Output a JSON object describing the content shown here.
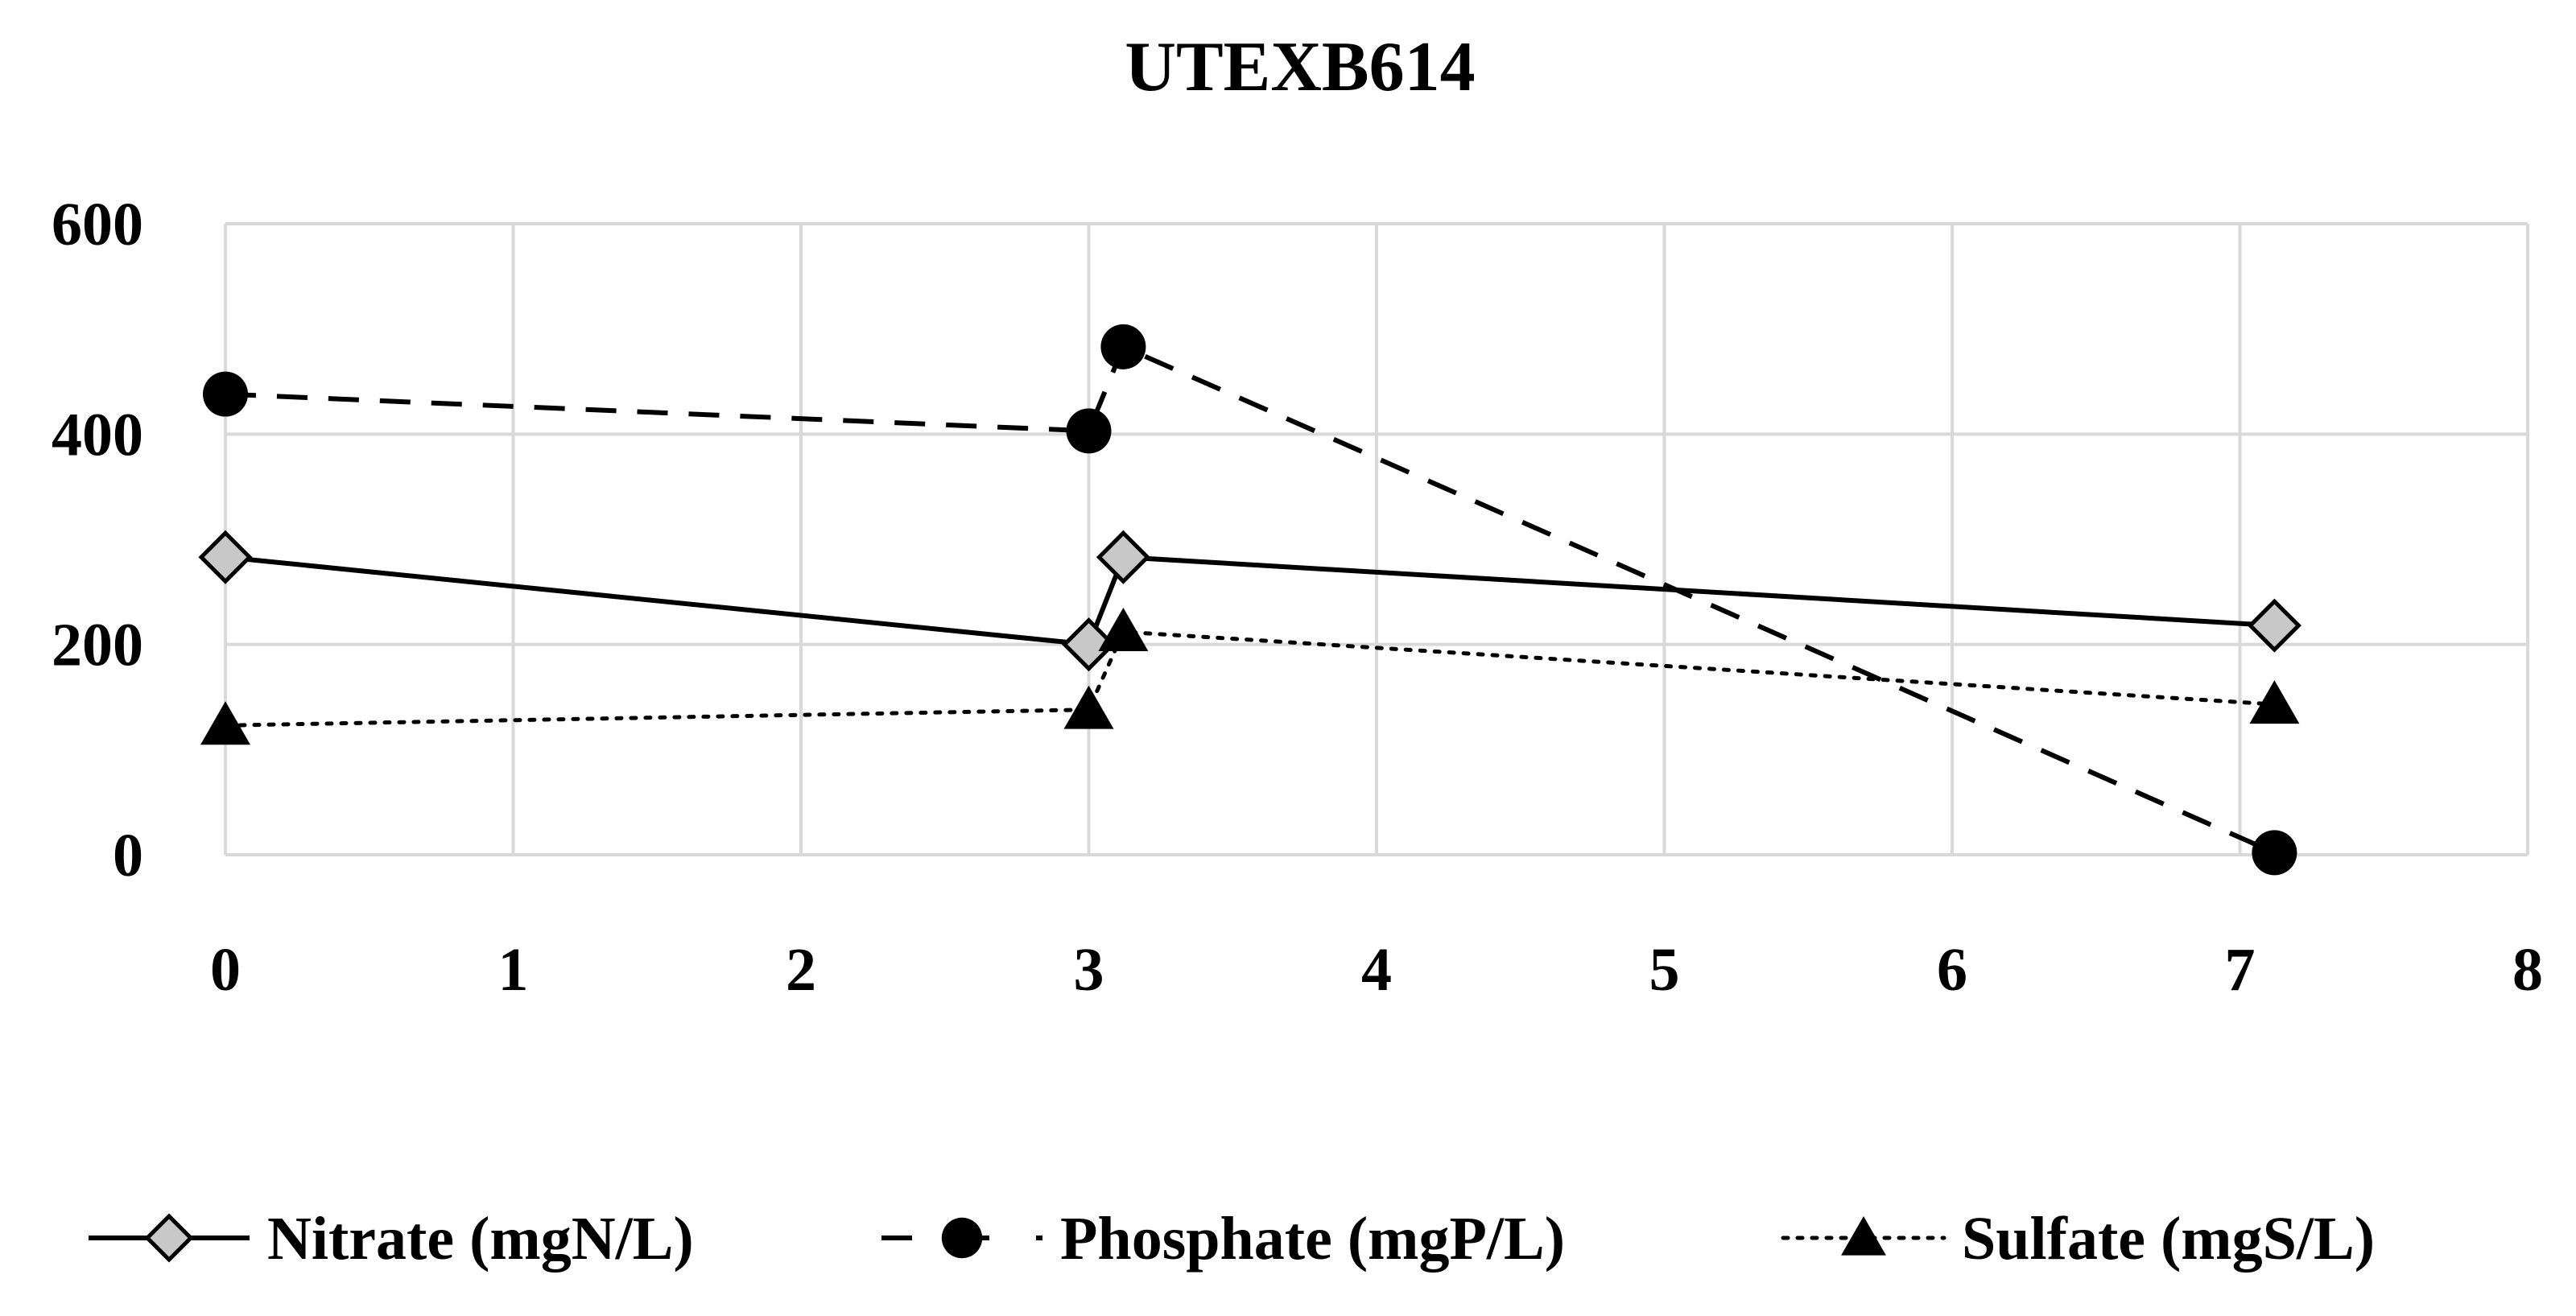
{
  "chart_data": {
    "type": "line",
    "title": "UTEXB614",
    "xlabel": "",
    "ylabel": "",
    "xlim": [
      0,
      8
    ],
    "ylim": [
      0,
      600
    ],
    "x_ticks": [
      "0",
      "1",
      "2",
      "3",
      "4",
      "5",
      "6",
      "7",
      "8"
    ],
    "y_ticks": [
      "0",
      "200",
      "400",
      "600"
    ],
    "grid": true,
    "legend_position": "bottom",
    "series": [
      {
        "name": "Nitrate (mgN/L)",
        "line_style": "solid",
        "marker": "diamond",
        "marker_color": "#c8c8c8",
        "points": [
          {
            "x": 0,
            "y": 283
          },
          {
            "x": 3,
            "y": 200
          },
          {
            "x": 3.12,
            "y": 283
          },
          {
            "x": 7.12,
            "y": 218
          }
        ]
      },
      {
        "name": "Phosphate (mgP/L)",
        "line_style": "dashed",
        "marker": "circle",
        "marker_color": "#000000",
        "points": [
          {
            "x": 0,
            "y": 438
          },
          {
            "x": 3,
            "y": 403
          },
          {
            "x": 3.12,
            "y": 483
          },
          {
            "x": 7.12,
            "y": 2
          }
        ]
      },
      {
        "name": "Sulfate (mgS/L)",
        "line_style": "dotted",
        "marker": "triangle",
        "marker_color": "#000000",
        "points": [
          {
            "x": 0,
            "y": 123
          },
          {
            "x": 3,
            "y": 138
          },
          {
            "x": 3.12,
            "y": 212
          },
          {
            "x": 7.12,
            "y": 143
          }
        ]
      }
    ],
    "colors": {
      "line": "#000000",
      "grid": "#d9d9d9",
      "diamond_fill": "#c8c8c8"
    }
  }
}
